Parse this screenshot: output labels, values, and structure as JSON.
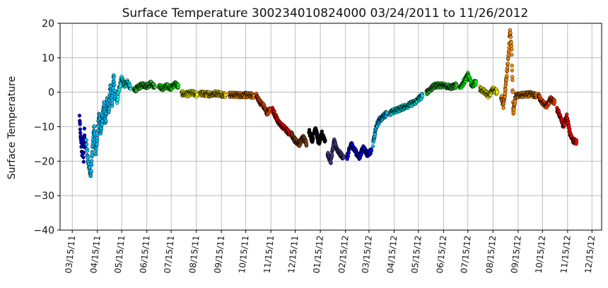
{
  "chart_data": {
    "type": "scatter",
    "title": "Surface Temperature 300234010824000  03/24/2011 to 11/26/2012",
    "ylabel": "Surface Temperature",
    "xlabel": "",
    "ylim": [
      -40,
      20
    ],
    "yticks": [
      "20",
      "10",
      "0",
      "−10",
      "−20",
      "−30",
      "−40"
    ],
    "ytick_values": [
      20,
      10,
      0,
      -10,
      -20,
      -30,
      -40
    ],
    "xlim": [
      "2011-02-28",
      "2012-12-27"
    ],
    "xticks": [
      {
        "date": "2011-03-15",
        "label": "03/15/11"
      },
      {
        "date": "2011-04-15",
        "label": "04/15/11"
      },
      {
        "date": "2011-05-15",
        "label": "05/15/11"
      },
      {
        "date": "2011-06-15",
        "label": "06/15/11"
      },
      {
        "date": "2011-07-15",
        "label": "07/15/11"
      },
      {
        "date": "2011-08-15",
        "label": "08/15/11"
      },
      {
        "date": "2011-09-15",
        "label": "09/15/11"
      },
      {
        "date": "2011-10-15",
        "label": "10/15/11"
      },
      {
        "date": "2011-11-15",
        "label": "11/15/11"
      },
      {
        "date": "2011-12-15",
        "label": "12/15/11"
      },
      {
        "date": "2012-01-15",
        "label": "01/15/12"
      },
      {
        "date": "2012-02-15",
        "label": "02/15/12"
      },
      {
        "date": "2012-03-15",
        "label": "03/15/12"
      },
      {
        "date": "2012-04-15",
        "label": "04/15/12"
      },
      {
        "date": "2012-05-15",
        "label": "05/15/12"
      },
      {
        "date": "2012-06-15",
        "label": "06/15/12"
      },
      {
        "date": "2012-07-15",
        "label": "07/15/12"
      },
      {
        "date": "2012-08-15",
        "label": "08/15/12"
      },
      {
        "date": "2012-09-15",
        "label": "09/15/12"
      },
      {
        "date": "2012-10-15",
        "label": "10/15/12"
      },
      {
        "date": "2012-11-15",
        "label": "11/15/12"
      },
      {
        "date": "2012-12-15",
        "label": "12/15/12"
      }
    ],
    "grid": true,
    "series": [
      {
        "color": "#0000cd",
        "points": [
          [
            "2011-03-24",
            -7
          ],
          [
            "2011-03-25",
            -12
          ],
          [
            "2011-03-26",
            -15
          ],
          [
            "2011-03-27",
            -18
          ],
          [
            "2011-03-28",
            -13
          ],
          [
            "2011-03-29",
            -20
          ],
          [
            "2011-03-30",
            -11
          ],
          [
            "2011-03-31",
            -16
          ]
        ]
      },
      {
        "color": "#00bfff",
        "points": [
          [
            "2011-04-01",
            -14
          ],
          [
            "2011-04-03",
            -19
          ],
          [
            "2011-04-05",
            -22
          ],
          [
            "2011-04-07",
            -24
          ],
          [
            "2011-04-09",
            -16
          ],
          [
            "2011-04-11",
            -10
          ],
          [
            "2011-04-13",
            -18
          ],
          [
            "2011-04-15",
            -13
          ],
          [
            "2011-04-17",
            -6
          ],
          [
            "2011-04-19",
            -12
          ],
          [
            "2011-04-21",
            -8
          ],
          [
            "2011-04-23",
            -3
          ],
          [
            "2011-04-25",
            -9
          ],
          [
            "2011-04-27",
            -2
          ],
          [
            "2011-04-29",
            -6
          ],
          [
            "2011-05-01",
            2
          ],
          [
            "2011-05-03",
            -4
          ],
          [
            "2011-05-05",
            5
          ],
          [
            "2011-05-07",
            -2
          ]
        ]
      },
      {
        "color": "#00ffff",
        "points": [
          [
            "2011-05-09",
            -3
          ],
          [
            "2011-05-12",
            1
          ],
          [
            "2011-05-15",
            4
          ],
          [
            "2011-05-18",
            2
          ],
          [
            "2011-05-22",
            3
          ],
          [
            "2011-05-26",
            1
          ]
        ]
      },
      {
        "color": "#32cd32",
        "points": [
          [
            "2011-05-30",
            0.5
          ],
          [
            "2011-06-05",
            1.5
          ],
          [
            "2011-06-10",
            2.2
          ],
          [
            "2011-06-15",
            1.8
          ],
          [
            "2011-06-20",
            2.5
          ],
          [
            "2011-06-25",
            1.5
          ]
        ]
      },
      {
        "color": "#00ff00",
        "points": [
          [
            "2011-06-30",
            1.5
          ],
          [
            "2011-07-05",
            1.2
          ],
          [
            "2011-07-10",
            1.8
          ],
          [
            "2011-07-15",
            1.3
          ],
          [
            "2011-07-20",
            2.5
          ],
          [
            "2011-07-24",
            1.5
          ]
        ]
      },
      {
        "color": "#ffff00",
        "points": [
          [
            "2011-07-28",
            -0.3
          ],
          [
            "2011-08-03",
            -0.6
          ],
          [
            "2011-08-10",
            -0.2
          ],
          [
            "2011-08-16",
            -0.7
          ]
        ]
      },
      {
        "color": "#ffd700",
        "points": [
          [
            "2011-08-20",
            -0.4
          ],
          [
            "2011-08-30",
            -0.6
          ],
          [
            "2011-09-10",
            -0.3
          ],
          [
            "2011-09-20",
            -0.8
          ]
        ]
      },
      {
        "color": "#ff8c00",
        "points": [
          [
            "2011-09-25",
            -0.7
          ],
          [
            "2011-10-05",
            -0.8
          ],
          [
            "2011-10-15",
            -0.8
          ],
          [
            "2011-10-25",
            -1.0
          ]
        ]
      },
      {
        "color": "#ff4500",
        "points": [
          [
            "2011-10-28",
            -1
          ],
          [
            "2011-11-02",
            -3
          ],
          [
            "2011-11-06",
            -4
          ],
          [
            "2011-11-10",
            -6
          ],
          [
            "2011-11-14",
            -5
          ]
        ]
      },
      {
        "color": "#ff0000",
        "points": [
          [
            "2011-11-17",
            -5
          ],
          [
            "2011-11-21",
            -7
          ],
          [
            "2011-11-25",
            -9
          ],
          [
            "2011-11-30",
            -10
          ],
          [
            "2011-12-04",
            -11
          ],
          [
            "2011-12-08",
            -12
          ]
        ]
      },
      {
        "color": "#8b4513",
        "points": [
          [
            "2011-12-10",
            -12
          ],
          [
            "2011-12-15",
            -14
          ],
          [
            "2011-12-20",
            -15
          ],
          [
            "2011-12-25",
            -13
          ],
          [
            "2011-12-29",
            -15
          ]
        ]
      },
      {
        "color": "#000000",
        "points": [
          [
            "2012-01-01",
            -11
          ],
          [
            "2012-01-05",
            -14
          ],
          [
            "2012-01-09",
            -10
          ],
          [
            "2012-01-13",
            -15
          ],
          [
            "2012-01-17",
            -12
          ],
          [
            "2012-01-21",
            -14
          ]
        ]
      },
      {
        "color": "#483d8b",
        "points": [
          [
            "2012-01-24",
            -18
          ],
          [
            "2012-01-28",
            -20
          ],
          [
            "2012-02-01",
            -14
          ],
          [
            "2012-02-05",
            -17
          ],
          [
            "2012-02-09",
            -18
          ],
          [
            "2012-02-13",
            -19
          ]
        ]
      },
      {
        "color": "#0000ff",
        "points": [
          [
            "2012-02-17",
            -19
          ],
          [
            "2012-02-22",
            -15
          ],
          [
            "2012-02-27",
            -17
          ],
          [
            "2012-03-03",
            -19
          ],
          [
            "2012-03-08",
            -16
          ],
          [
            "2012-03-13",
            -18
          ],
          [
            "2012-03-18",
            -17
          ]
        ]
      },
      {
        "color": "#00bfff",
        "points": [
          [
            "2012-03-20",
            -15
          ],
          [
            "2012-03-24",
            -10
          ],
          [
            "2012-03-28",
            -8
          ],
          [
            "2012-04-02",
            -7
          ],
          [
            "2012-04-06",
            -6
          ]
        ]
      },
      {
        "color": "#00ffff",
        "points": [
          [
            "2012-04-10",
            -6
          ],
          [
            "2012-04-20",
            -5
          ],
          [
            "2012-04-30",
            -4
          ],
          [
            "2012-05-10",
            -3
          ],
          [
            "2012-05-20",
            -1
          ]
        ]
      },
      {
        "color": "#32cd32",
        "points": [
          [
            "2012-05-25",
            0
          ],
          [
            "2012-06-05",
            2
          ],
          [
            "2012-06-15",
            2
          ],
          [
            "2012-06-25",
            1.5
          ],
          [
            "2012-07-01",
            2
          ]
        ]
      },
      {
        "color": "#00ff00",
        "points": [
          [
            "2012-07-05",
            1
          ],
          [
            "2012-07-10",
            3
          ],
          [
            "2012-07-15",
            5
          ],
          [
            "2012-07-20",
            2
          ],
          [
            "2012-07-25",
            3
          ]
        ]
      },
      {
        "color": "#ffff00",
        "points": [
          [
            "2012-07-30",
            1
          ],
          [
            "2012-08-05",
            0
          ],
          [
            "2012-08-10",
            -1
          ],
          [
            "2012-08-15",
            1
          ],
          [
            "2012-08-20",
            0
          ]
        ]
      },
      {
        "color": "#ff8c00",
        "points": [
          [
            "2012-08-25",
            -1
          ],
          [
            "2012-08-28",
            -4
          ],
          [
            "2012-09-01",
            5
          ],
          [
            "2012-09-03",
            10
          ],
          [
            "2012-09-05",
            18
          ],
          [
            "2012-09-07",
            12
          ],
          [
            "2012-09-09",
            -6
          ],
          [
            "2012-09-12",
            -1
          ],
          [
            "2012-09-20",
            -0.8
          ],
          [
            "2012-09-30",
            -0.6
          ],
          [
            "2012-10-08",
            -1
          ]
        ]
      },
      {
        "color": "#ff4500",
        "points": [
          [
            "2012-10-10",
            -1
          ],
          [
            "2012-10-15",
            -3
          ],
          [
            "2012-10-20",
            -4
          ],
          [
            "2012-10-25",
            -2
          ],
          [
            "2012-10-30",
            -3
          ]
        ]
      },
      {
        "color": "#ff0000",
        "points": [
          [
            "2012-11-02",
            -5
          ],
          [
            "2012-11-06",
            -7
          ],
          [
            "2012-11-10",
            -10
          ],
          [
            "2012-11-14",
            -7
          ],
          [
            "2012-11-18",
            -12
          ],
          [
            "2012-11-22",
            -14
          ],
          [
            "2012-11-26",
            -14.5
          ]
        ]
      }
    ]
  }
}
